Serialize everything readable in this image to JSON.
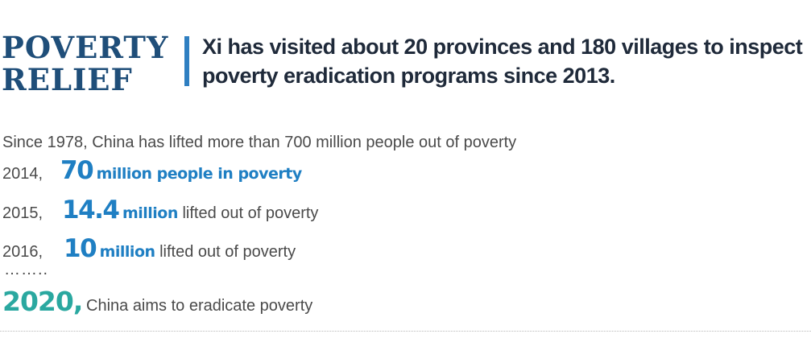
{
  "title": {
    "line1": "POVERTY",
    "line2": "RELIEF"
  },
  "headline": "Xi has visited about 20 provinces and 180 villages to inspect poverty eradication programs since 2013.",
  "intro": "Since 1978, China has lifted more than 700 million people out of poverty",
  "milestones": [
    {
      "year": "2014,",
      "number": "70",
      "unit": "million people in poverty",
      "rest": ""
    },
    {
      "year": "2015,",
      "number": "14.4",
      "unit": "million",
      "rest": " lifted out of poverty"
    },
    {
      "year": "2016,",
      "number": "10",
      "unit": "million",
      "rest": " lifted out of poverty"
    }
  ],
  "ellipsis": "……..",
  "goal": {
    "year": "2020,",
    "text": "China aims to eradicate poverty"
  },
  "colors": {
    "title": "#1f4e79",
    "accent_bar": "#2f7fc1",
    "numbers": "#1f7fc3",
    "goal_year": "#2aa8a0",
    "body_text": "#4a4a4a"
  }
}
